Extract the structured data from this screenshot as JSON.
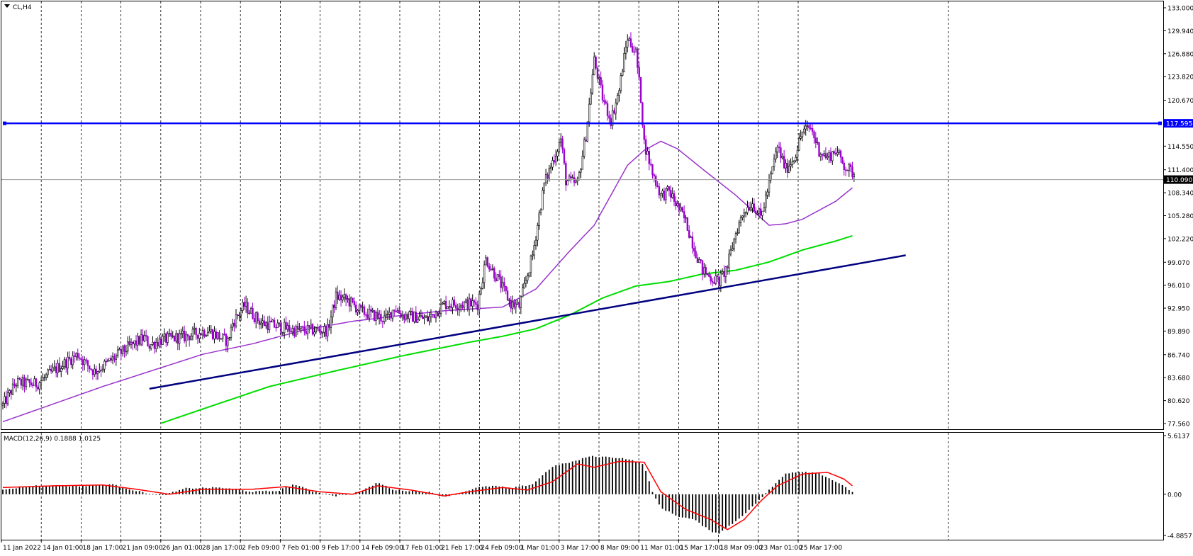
{
  "header": {
    "symbol_label": "CL,H4",
    "macd_label": "MACD(12,26,9) 0.1888 1.0125"
  },
  "colors": {
    "background": "#ffffff",
    "bull_candle": "#000000",
    "bear_candle": "#9900cc",
    "ma_short": "#9933cc",
    "ma_long": "#00dd00",
    "trendline": "#000080",
    "resistance": "#0000ff",
    "macd_hist": "#000000",
    "macd_signal": "#ff0000"
  },
  "chart_data": [
    {
      "type": "candlestick",
      "symbol": "CL,H4",
      "ylim": [
        77.56,
        133.0
      ],
      "y_ticks": [
        "133.000",
        "129.940",
        "126.880",
        "123.820",
        "120.670",
        "117.595",
        "114.550",
        "111.400",
        "110.090",
        "108.340",
        "105.280",
        "102.220",
        "99.070",
        "96.010",
        "92.950",
        "89.890",
        "86.740",
        "83.680",
        "80.620",
        "77.560"
      ],
      "x_labels": [
        "11 Jan 2022",
        "14 Jan 01:00",
        "18 Jan 17:00",
        "21 Jan 09:00",
        "26 Jan 01:00",
        "28 Jan 17:00",
        "2 Feb 09:00",
        "7 Feb 01:00",
        "9 Feb 17:00",
        "14 Feb 09:00",
        "17 Feb 01:00",
        "21 Feb 17:00",
        "24 Feb 09:00",
        "1 Mar 01:00",
        "3 Mar 17:00",
        "8 Mar 09:00",
        "11 Mar 01:00",
        "15 Mar 17:00",
        "18 Mar 09:00",
        "23 Mar 01:00",
        "25 Mar 17:00"
      ],
      "close_path": [
        [
          0,
          80.0
        ],
        [
          8,
          83.0
        ],
        [
          20,
          82.8
        ],
        [
          33,
          85.0
        ],
        [
          45,
          86.8
        ],
        [
          50,
          85.5
        ],
        [
          55,
          84.5
        ],
        [
          62,
          85.5
        ],
        [
          75,
          87.7
        ],
        [
          85,
          89.0
        ],
        [
          88,
          88.0
        ],
        [
          95,
          88.7
        ],
        [
          110,
          89.2
        ],
        [
          123,
          90.0
        ],
        [
          135,
          88.5
        ],
        [
          138,
          91.0
        ],
        [
          145,
          93.3
        ],
        [
          155,
          91.0
        ],
        [
          175,
          90.0
        ],
        [
          195,
          90.0
        ],
        [
          200,
          94.5
        ],
        [
          207,
          94.0
        ],
        [
          215,
          92.5
        ],
        [
          230,
          91.5
        ],
        [
          235,
          93.0
        ],
        [
          240,
          92.0
        ],
        [
          255,
          91.5
        ],
        [
          265,
          93.5
        ],
        [
          275,
          93.5
        ],
        [
          285,
          93.5
        ],
        [
          290,
          99.5
        ],
        [
          298,
          96.5
        ],
        [
          305,
          93.5
        ],
        [
          310,
          93.2
        ],
        [
          318,
          100.0
        ],
        [
          325,
          109.5
        ],
        [
          335,
          115.5
        ],
        [
          338,
          110.0
        ],
        [
          345,
          109.5
        ],
        [
          350,
          116.0
        ],
        [
          355,
          126.0
        ],
        [
          360,
          121.0
        ],
        [
          365,
          118.0
        ],
        [
          370,
          122.0
        ],
        [
          372,
          125.0
        ],
        [
          375,
          129.0
        ],
        [
          380,
          127.0
        ],
        [
          383,
          121.0
        ],
        [
          385,
          115.0
        ],
        [
          390,
          111.0
        ],
        [
          395,
          108.0
        ],
        [
          400,
          108.5
        ],
        [
          410,
          104.5
        ],
        [
          415,
          101.0
        ],
        [
          420,
          98.0
        ],
        [
          425,
          97.0
        ],
        [
          430,
          96.5
        ],
        [
          435,
          98.5
        ],
        [
          440,
          103.0
        ],
        [
          445,
          106.0
        ],
        [
          450,
          107.0
        ],
        [
          455,
          105.0
        ],
        [
          460,
          109.5
        ],
        [
          465,
          114.5
        ],
        [
          470,
          111.5
        ],
        [
          475,
          113.0
        ],
        [
          480,
          116.5
        ],
        [
          485,
          117.0
        ],
        [
          490,
          114.0
        ],
        [
          495,
          113.0
        ],
        [
          500,
          114.0
        ],
        [
          505,
          112.0
        ],
        [
          510,
          111.0
        ]
      ],
      "overlays": [
        {
          "kind": "moving_average",
          "style": "purple",
          "path": [
            [
              0,
              77.8
            ],
            [
              60,
              82.5
            ],
            [
              120,
              86.8
            ],
            [
              150,
              88.2
            ],
            [
              180,
              90.0
            ],
            [
              210,
              91.2
            ],
            [
              240,
              92.0
            ],
            [
              265,
              92.6
            ],
            [
              300,
              93.1
            ],
            [
              320,
              95.5
            ],
            [
              340,
              100.5
            ],
            [
              355,
              104.0
            ],
            [
              365,
              108.0
            ],
            [
              375,
              112.0
            ],
            [
              385,
              114.0
            ],
            [
              395,
              115.2
            ],
            [
              405,
              114.2
            ],
            [
              420,
              111.5
            ],
            [
              440,
              108.0
            ],
            [
              450,
              106.0
            ],
            [
              460,
              104.0
            ],
            [
              470,
              104.2
            ],
            [
              480,
              104.8
            ],
            [
              490,
              106.0
            ],
            [
              500,
              107.2
            ],
            [
              510,
              109.0
            ]
          ]
        },
        {
          "kind": "moving_average",
          "style": "green",
          "path": [
            [
              95,
              77.6
            ],
            [
              120,
              79.5
            ],
            [
              160,
              82.5
            ],
            [
              200,
              84.6
            ],
            [
              240,
              86.6
            ],
            [
              280,
              88.4
            ],
            [
              300,
              89.2
            ],
            [
              320,
              90.2
            ],
            [
              340,
              92.0
            ],
            [
              360,
              94.3
            ],
            [
              380,
              95.9
            ],
            [
              400,
              96.5
            ],
            [
              420,
              97.5
            ],
            [
              440,
              98.0
            ],
            [
              460,
              99.1
            ],
            [
              480,
              100.7
            ],
            [
              500,
              101.9
            ],
            [
              510,
              102.6
            ]
          ]
        },
        {
          "kind": "trendline",
          "from": [
            88,
            82.2
          ],
          "to": [
            542,
            100.0
          ]
        },
        {
          "kind": "horizontal_line",
          "price": 117.595,
          "label": "117.595"
        },
        {
          "kind": "current_price",
          "price": 110.09,
          "label": "110.090"
        }
      ]
    },
    {
      "type": "histogram_with_signal",
      "label": "MACD(12,26,9) 0.1888 1.0125",
      "macd": 0.1888,
      "signal": 1.0125,
      "ylim": [
        -4.8857,
        5.6137
      ],
      "y_ticks": [
        "5.6137",
        "0.00",
        "-4.8857"
      ],
      "histogram_path": [
        [
          0,
          0.6
        ],
        [
          20,
          1.0
        ],
        [
          50,
          1.0
        ],
        [
          65,
          1.2
        ],
        [
          80,
          0.4
        ],
        [
          95,
          -0.2
        ],
        [
          110,
          0.7
        ],
        [
          130,
          0.8
        ],
        [
          150,
          0.3
        ],
        [
          165,
          0.4
        ],
        [
          175,
          1.2
        ],
        [
          185,
          0.4
        ],
        [
          200,
          -0.2
        ],
        [
          215,
          0.3
        ],
        [
          225,
          1.4
        ],
        [
          235,
          0.5
        ],
        [
          255,
          0.3
        ],
        [
          265,
          -0.3
        ],
        [
          275,
          0.2
        ],
        [
          285,
          0.8
        ],
        [
          295,
          1.0
        ],
        [
          305,
          0.7
        ],
        [
          318,
          1.2
        ],
        [
          330,
          3.3
        ],
        [
          345,
          4.0
        ],
        [
          352,
          4.5
        ],
        [
          365,
          4.4
        ],
        [
          375,
          4.2
        ],
        [
          385,
          3.5
        ],
        [
          390,
          0.2
        ],
        [
          395,
          -1.6
        ],
        [
          405,
          -2.6
        ],
        [
          415,
          -3.0
        ],
        [
          425,
          -4.4
        ],
        [
          430,
          -4.6
        ],
        [
          440,
          -3.2
        ],
        [
          450,
          -1.5
        ],
        [
          460,
          0.5
        ],
        [
          470,
          2.5
        ],
        [
          480,
          2.7
        ],
        [
          490,
          2.5
        ],
        [
          500,
          1.5
        ],
        [
          510,
          0.3
        ]
      ],
      "signal_path": [
        [
          0,
          0.8
        ],
        [
          30,
          1.0
        ],
        [
          60,
          1.1
        ],
        [
          80,
          0.6
        ],
        [
          100,
          0.0
        ],
        [
          120,
          0.6
        ],
        [
          150,
          0.6
        ],
        [
          170,
          0.9
        ],
        [
          190,
          0.3
        ],
        [
          210,
          0.0
        ],
        [
          225,
          1.0
        ],
        [
          245,
          0.5
        ],
        [
          265,
          -0.2
        ],
        [
          280,
          0.3
        ],
        [
          300,
          0.8
        ],
        [
          315,
          0.5
        ],
        [
          330,
          1.5
        ],
        [
          345,
          3.6
        ],
        [
          355,
          3.2
        ],
        [
          370,
          3.9
        ],
        [
          385,
          3.8
        ],
        [
          395,
          0.3
        ],
        [
          410,
          -1.8
        ],
        [
          425,
          -3.0
        ],
        [
          435,
          -4.2
        ],
        [
          445,
          -3.0
        ],
        [
          455,
          -0.8
        ],
        [
          465,
          1.0
        ],
        [
          480,
          2.4
        ],
        [
          495,
          2.6
        ],
        [
          505,
          1.8
        ],
        [
          510,
          1.0
        ]
      ]
    }
  ]
}
